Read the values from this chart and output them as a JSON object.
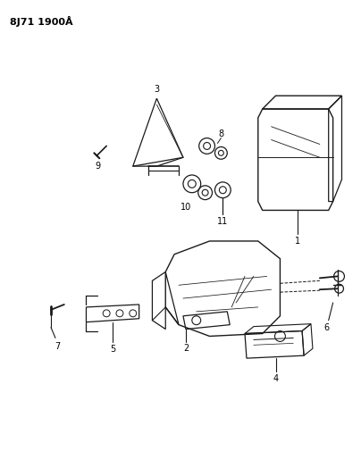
{
  "title": "8J71 1900Å",
  "background_color": "#ffffff",
  "line_color": "#1a1a1a",
  "figsize": [
    4.04,
    5.33
  ],
  "dpi": 100
}
